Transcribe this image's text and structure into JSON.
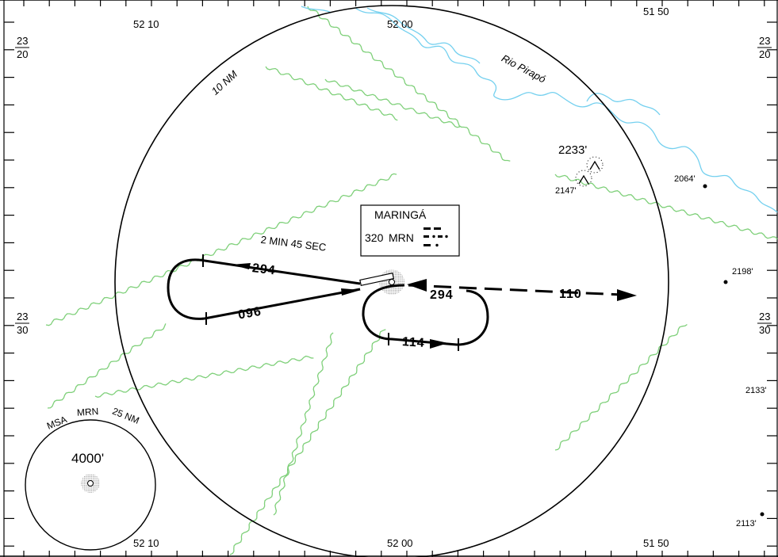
{
  "chart": {
    "coordinates": {
      "lon_top": [
        "52 10",
        "52 00",
        "51 50"
      ],
      "lon_bottom": [
        "52 10",
        "52 00",
        "51 50"
      ],
      "lat_left": [
        [
          "23",
          "20"
        ],
        [
          "23",
          "30"
        ]
      ],
      "lat_right": [
        [
          "23",
          "20"
        ],
        [
          "23",
          "30"
        ]
      ]
    },
    "radius_label": "10 NM",
    "river_label": "Rio Pirapó",
    "navaid": {
      "name": "MARINGÁ",
      "frequency": "320",
      "ident": "MRN"
    },
    "holding": {
      "time_label": "2 MIN 45 SEC",
      "courses": {
        "west_inbound": "294",
        "west_outbound": "096",
        "east_outbound": "294",
        "east_inbound": "114",
        "departure": "110"
      }
    },
    "elevations": [
      {
        "label": "2233'"
      },
      {
        "label": "2147'"
      },
      {
        "label": "2064'"
      },
      {
        "label": "2198'"
      },
      {
        "label": "2133'"
      },
      {
        "label": "2113'"
      }
    ],
    "msa": {
      "label_msa": "MSA",
      "label_ident": "MRN",
      "label_radius": "25 NM",
      "altitude": "4000'"
    },
    "colors": {
      "terrain_contour": "#7fd07a",
      "river": "#74d0ef",
      "ink": "#000000"
    }
  }
}
